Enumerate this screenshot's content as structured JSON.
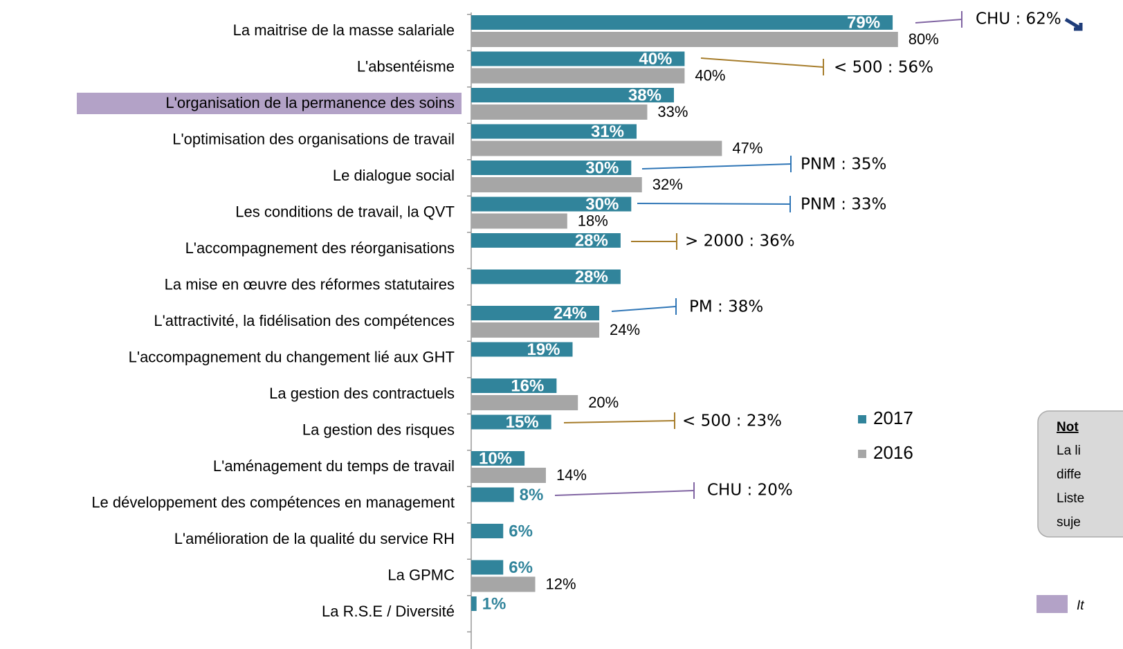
{
  "chart_data": {
    "type": "bar",
    "orientation": "horizontal",
    "categories": [
      "La maitrise de la masse salariale",
      "L'absentéisme",
      "L'organisation de la permanence des soins",
      "L'optimisation des organisations de travail",
      "Le dialogue social",
      "Les conditions de travail, la QVT",
      "L'accompagnement des réorganisations",
      "La mise en œuvre des réformes statutaires",
      "L'attractivité, la fidélisation des compétences",
      "L'accompagnement du changement lié aux GHT",
      "La gestion des contractuels",
      "La gestion des risques",
      "L'aménagement du temps de travail",
      "Le développement des compétences en management",
      "L'amélioration de la qualité du service RH",
      "La GPMC",
      "La R.S.E / Diversité"
    ],
    "series": [
      {
        "name": "2017",
        "color": "#31849b",
        "values": [
          79,
          40,
          38,
          31,
          30,
          30,
          28,
          28,
          24,
          19,
          16,
          15,
          10,
          8,
          6,
          6,
          1
        ],
        "value_labels": [
          "79%",
          "40%",
          "38%",
          "31%",
          "30%",
          "30%",
          "28%",
          "28%",
          "24%",
          "19%",
          "16%",
          "15%",
          "10%",
          "8%",
          "6%",
          "6%",
          "1%"
        ]
      },
      {
        "name": "2016",
        "color": "#a6a6a6",
        "values": [
          80,
          40,
          33,
          47,
          32,
          18,
          null,
          null,
          24,
          null,
          20,
          null,
          14,
          null,
          null,
          12,
          null
        ],
        "value_labels": [
          "80%",
          "40%",
          "33%",
          "47%",
          "32%",
          "18%",
          null,
          null,
          "24%",
          null,
          "20%",
          null,
          "14%",
          null,
          null,
          "12%",
          null
        ]
      }
    ],
    "xlim": [
      0,
      100
    ],
    "highlight": {
      "index": 2,
      "color": "#b3a2c7"
    },
    "annotations": [
      {
        "text": "CHU : 62%",
        "color": "#8064a2"
      },
      {
        "text": "< 500 : 56%",
        "color": "#a67c2a"
      },
      {
        "text": "PNM : 35%",
        "color": "#2e75b6"
      },
      {
        "text": "PNM : 33%",
        "color": "#2e75b6"
      },
      {
        "text": "> 2000 : 36%",
        "color": "#a67c2a"
      },
      {
        "text": "PM : 38%",
        "color": "#2e75b6"
      },
      {
        "text": "< 500 : 23%",
        "color": "#a67c2a"
      },
      {
        "text": "CHU : 20%",
        "color": "#8064a2"
      }
    ]
  },
  "note": {
    "title": "Not",
    "lines": [
      "La li",
      "diffe",
      "Liste",
      "suje"
    ]
  },
  "key": {
    "label": "It",
    "color": "#b3a2c7"
  }
}
